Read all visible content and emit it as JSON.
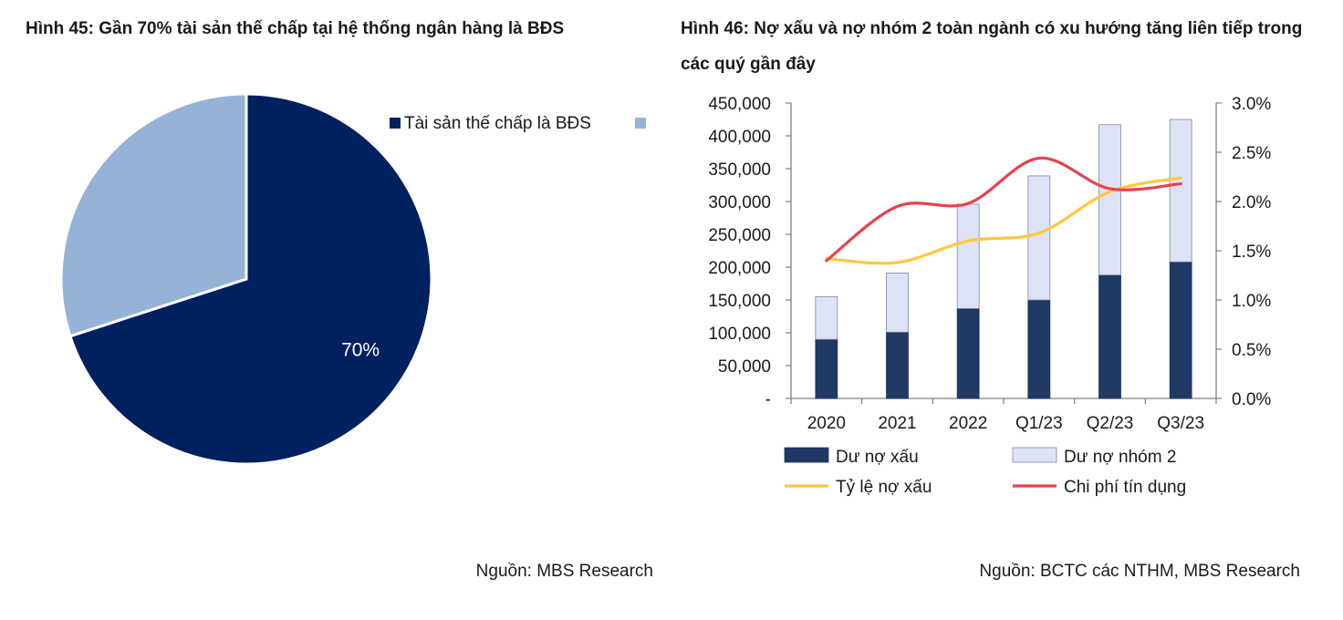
{
  "figure45": {
    "title": "Hình 45: Gần 70% tài sản thế chấp tại hệ thống ngân hàng là BĐS",
    "source": "Nguồn: MBS Research",
    "chart_data": {
      "type": "pie",
      "title": "Hình 45: Gần 70% tài sản thế chấp tại hệ thống ngân hàng là BĐS",
      "slices": [
        {
          "label": "Tài sản thế chấp là BĐS",
          "value": 70,
          "data_label": "70%",
          "color": "#002060"
        },
        {
          "label": "",
          "value": 30,
          "data_label": "",
          "color": "#95b3d7"
        }
      ],
      "legend": [
        "Tài sản thế chấp là BĐS",
        ""
      ],
      "legend_position": "top-right"
    }
  },
  "figure46": {
    "title": "Hình 46: Nợ xấu và nợ nhóm 2 toàn ngành có xu hướng tăng liên tiếp trong các quý gần đây",
    "source": "Nguồn: BCTC các NTHM, MBS Research",
    "chart_data": {
      "type": "bar",
      "stacked": true,
      "categories": [
        "2020",
        "2021",
        "2022",
        "Q1/23",
        "Q2/23",
        "Q3/23"
      ],
      "series": [
        {
          "name": "Dư nợ xấu",
          "axis": "left",
          "kind": "bar",
          "color": "#1f3864",
          "values": [
            90000,
            101000,
            137000,
            150000,
            188000,
            208000
          ]
        },
        {
          "name": "Dư nợ nhóm 2",
          "axis": "left",
          "kind": "bar",
          "color": "#dde3f5",
          "values": [
            65000,
            90000,
            159000,
            189000,
            229000,
            217000
          ]
        },
        {
          "name": "Tỷ lệ nợ xấu",
          "axis": "right",
          "kind": "line",
          "color": "#ffc83d",
          "values": [
            0.0142,
            0.0138,
            0.016,
            0.0168,
            0.021,
            0.0224
          ]
        },
        {
          "name": "Chi phí tín dụng",
          "axis": "right",
          "kind": "line",
          "color": "#e8424f",
          "values": [
            0.014,
            0.0195,
            0.0198,
            0.0244,
            0.0213,
            0.0218
          ]
        }
      ],
      "left_axis": {
        "min": 0,
        "max": 450000,
        "step": 50000,
        "tick_labels": [
          "-",
          "50,000",
          "100,000",
          "150,000",
          "200,000",
          "250,000",
          "300,000",
          "350,000",
          "400,000",
          "450,000"
        ]
      },
      "right_axis": {
        "min": 0,
        "max": 0.03,
        "step": 0.005,
        "tick_labels": [
          "0.0%",
          "0.5%",
          "1.0%",
          "1.5%",
          "2.0%",
          "2.5%",
          "3.0%"
        ]
      },
      "legend_position": "bottom",
      "grid": false
    }
  }
}
